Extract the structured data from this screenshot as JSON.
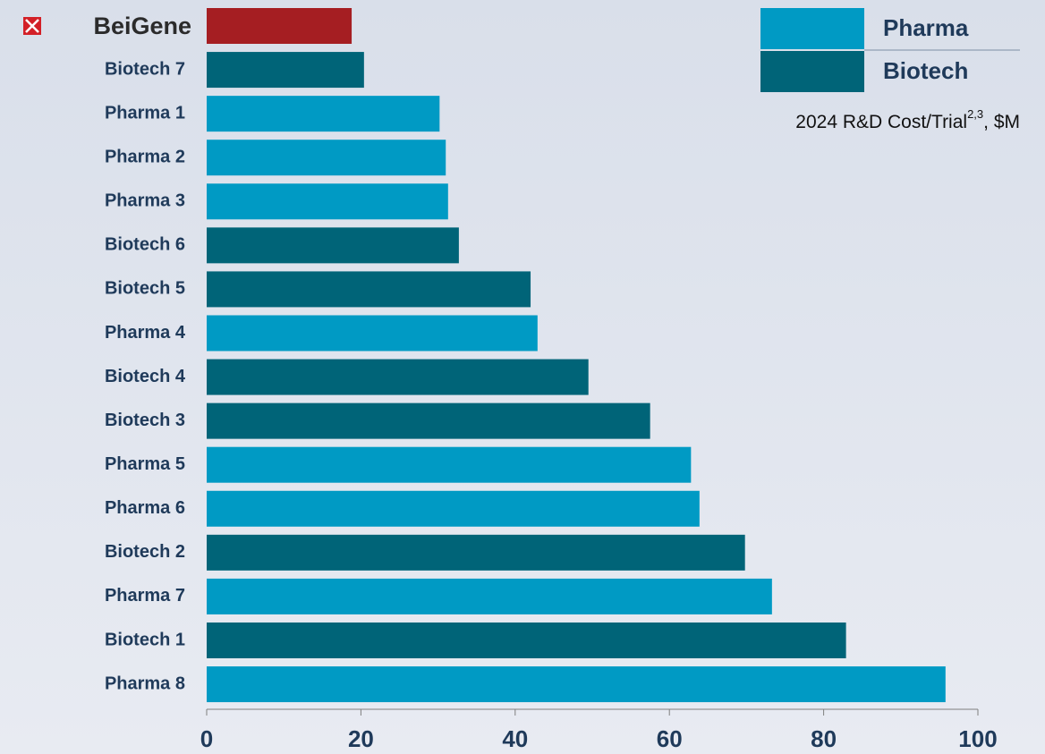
{
  "chart_data": {
    "type": "barh",
    "categories": [
      "BeiGene",
      "Biotech 7",
      "Pharma 1",
      "Pharma 2",
      "Pharma 3",
      "Biotech 6",
      "Biotech 5",
      "Pharma 4",
      "Biotech 4",
      "Biotech 3",
      "Pharma 5",
      "Pharma 6",
      "Biotech 2",
      "Pharma 7",
      "Biotech 1",
      "Pharma 8"
    ],
    "values": [
      18.8,
      20.4,
      30.2,
      31.0,
      31.3,
      32.7,
      42.0,
      42.9,
      49.5,
      57.5,
      62.8,
      63.9,
      69.8,
      73.3,
      82.9,
      95.8
    ],
    "colors": [
      "#a51e22",
      "#006478",
      "#009ac4",
      "#009ac4",
      "#009ac4",
      "#006478",
      "#006478",
      "#009ac4",
      "#006478",
      "#006478",
      "#009ac4",
      "#009ac4",
      "#006478",
      "#009ac4",
      "#006478",
      "#009ac4"
    ],
    "legend": [
      {
        "name": "Pharma",
        "color": "#009ac4"
      },
      {
        "name": "Biotech",
        "color": "#006478"
      }
    ],
    "annotation": {
      "text": "2024 R&D Cost/Trial",
      "superscript": "2,3",
      "suffix": ", $M"
    },
    "xlim": [
      0,
      100
    ],
    "xticks": [
      0,
      20,
      40,
      60,
      80,
      100
    ]
  }
}
